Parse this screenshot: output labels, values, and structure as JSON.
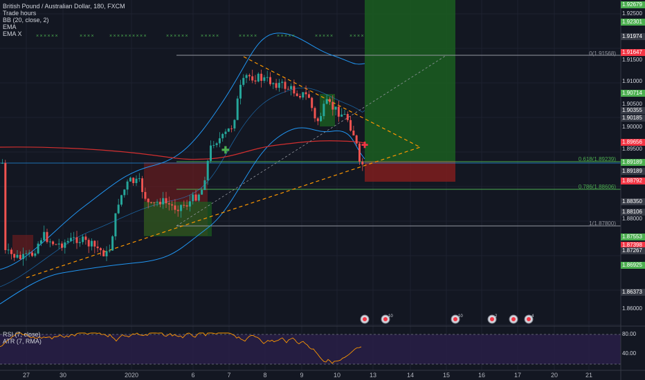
{
  "legend": {
    "title": "British Pound / Australian Dollar, 180, FXCM",
    "indicators": [
      "Trade hours",
      "BB (20, close, 2)",
      "EMA",
      "EMA X"
    ]
  },
  "sub_legend": {
    "rsi": "RSI (7, close)",
    "atr": "ATR (7, RMA)"
  },
  "rsi_axis": [
    "80.00",
    "40.00"
  ],
  "x_axis": [
    {
      "label": "27"
    },
    {
      "label": "30"
    },
    {
      "label": "2020"
    },
    {
      "label": "6"
    },
    {
      "label": "7"
    },
    {
      "label": "8"
    },
    {
      "label": "9"
    },
    {
      "label": "10"
    },
    {
      "label": "13"
    },
    {
      "label": "14"
    },
    {
      "label": "15"
    },
    {
      "label": "16"
    },
    {
      "label": "17"
    },
    {
      "label": "20"
    },
    {
      "label": "21"
    }
  ],
  "price_labels": [
    {
      "text": "1.92679",
      "kind": "box",
      "color": "#4caf50"
    },
    {
      "text": "1.92500",
      "kind": "plain"
    },
    {
      "text": "1.92301",
      "kind": "box",
      "color": "#4caf50"
    },
    {
      "text": "1.91974",
      "kind": "box",
      "color": "#363a45"
    },
    {
      "text": "1.91647",
      "kind": "box",
      "color": "#f23645"
    },
    {
      "text": "1.91500",
      "kind": "plain"
    },
    {
      "text": "1.91000",
      "kind": "plain"
    },
    {
      "text": "1.90714",
      "kind": "box",
      "color": "#4caf50"
    },
    {
      "text": "1.90500",
      "kind": "plain"
    },
    {
      "text": "1.90355",
      "kind": "box",
      "color": "#363a45"
    },
    {
      "text": "1.90185",
      "kind": "box",
      "color": "#363a45"
    },
    {
      "text": "1.90000",
      "kind": "plain"
    },
    {
      "text": "1.89656",
      "kind": "box",
      "color": "#f23645"
    },
    {
      "text": "1.89500",
      "kind": "plain"
    },
    {
      "text": "1.89189",
      "kind": "box",
      "color": "#4caf50"
    },
    {
      "text": "1.89189",
      "kind": "box",
      "color": "#363a45"
    },
    {
      "text": "1.88792",
      "kind": "box",
      "color": "#f23645"
    },
    {
      "text": "1.88350",
      "kind": "box",
      "color": "#363a45"
    },
    {
      "text": "1.88106",
      "kind": "box",
      "color": "#363a45"
    },
    {
      "text": "1.88000",
      "kind": "plain"
    },
    {
      "text": "1.87553",
      "kind": "box",
      "color": "#4caf50"
    },
    {
      "text": "1.87398",
      "kind": "box",
      "color": "#f23645"
    },
    {
      "text": "1.87267",
      "kind": "box",
      "color": "#363a45"
    },
    {
      "text": "1.86925",
      "kind": "box",
      "color": "#4caf50"
    },
    {
      "text": "1.86373",
      "kind": "box",
      "color": "#363a45"
    },
    {
      "text": "1.86000",
      "kind": "plain"
    }
  ],
  "fib_levels": [
    {
      "label": "0(1.91568)",
      "color": "#9598a1"
    },
    {
      "label": "0.618(1.89239)",
      "color": "#4caf50"
    },
    {
      "label": "0.786(1.88606)",
      "color": "#4caf50"
    },
    {
      "label": "1(1.87800)",
      "color": "#9598a1"
    }
  ],
  "event_badges": [
    "10",
    "10",
    "2",
    "4"
  ],
  "colors": {
    "background": "#131722",
    "up_candle": "#26a69a",
    "down_candle": "#ef5350",
    "bollinger": "#2196f3",
    "ema": "#d32f2f",
    "trendline": "#ff9800",
    "profit_zone": "#1b5e20",
    "loss_zone": "#7f1d1d",
    "rsi_line": "#ff9800",
    "rsi_bg": "#2a1f4a"
  }
}
